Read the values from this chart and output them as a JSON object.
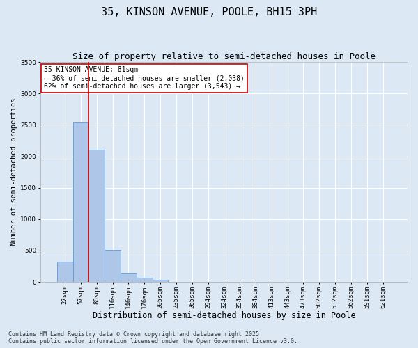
{
  "title": "35, KINSON AVENUE, POOLE, BH15 3PH",
  "subtitle": "Size of property relative to semi-detached houses in Poole",
  "xlabel": "Distribution of semi-detached houses by size in Poole",
  "ylabel": "Number of semi-detached properties",
  "categories": [
    "27sqm",
    "57sqm",
    "86sqm",
    "116sqm",
    "146sqm",
    "176sqm",
    "205sqm",
    "235sqm",
    "265sqm",
    "294sqm",
    "324sqm",
    "354sqm",
    "384sqm",
    "413sqm",
    "443sqm",
    "473sqm",
    "502sqm",
    "532sqm",
    "562sqm",
    "591sqm",
    "621sqm"
  ],
  "values": [
    320,
    2540,
    2110,
    510,
    140,
    65,
    35,
    0,
    0,
    0,
    0,
    0,
    0,
    0,
    0,
    0,
    0,
    0,
    0,
    0,
    0
  ],
  "bar_color": "#aec6e8",
  "bar_edge_color": "#5b9bd5",
  "vline_color": "#cc0000",
  "annotation_text": "35 KINSON AVENUE: 81sqm\n← 36% of semi-detached houses are smaller (2,038)\n62% of semi-detached houses are larger (3,543) →",
  "annotation_box_color": "#ffffff",
  "annotation_box_edge": "#cc0000",
  "ylim": [
    0,
    3500
  ],
  "yticks": [
    0,
    500,
    1000,
    1500,
    2000,
    2500,
    3000,
    3500
  ],
  "background_color": "#dce9f5",
  "grid_color": "#ffffff",
  "footer_line1": "Contains HM Land Registry data © Crown copyright and database right 2025.",
  "footer_line2": "Contains public sector information licensed under the Open Government Licence v3.0.",
  "title_fontsize": 11,
  "subtitle_fontsize": 9,
  "xlabel_fontsize": 8.5,
  "ylabel_fontsize": 7.5,
  "tick_fontsize": 6.5,
  "annotation_fontsize": 7,
  "footer_fontsize": 6
}
